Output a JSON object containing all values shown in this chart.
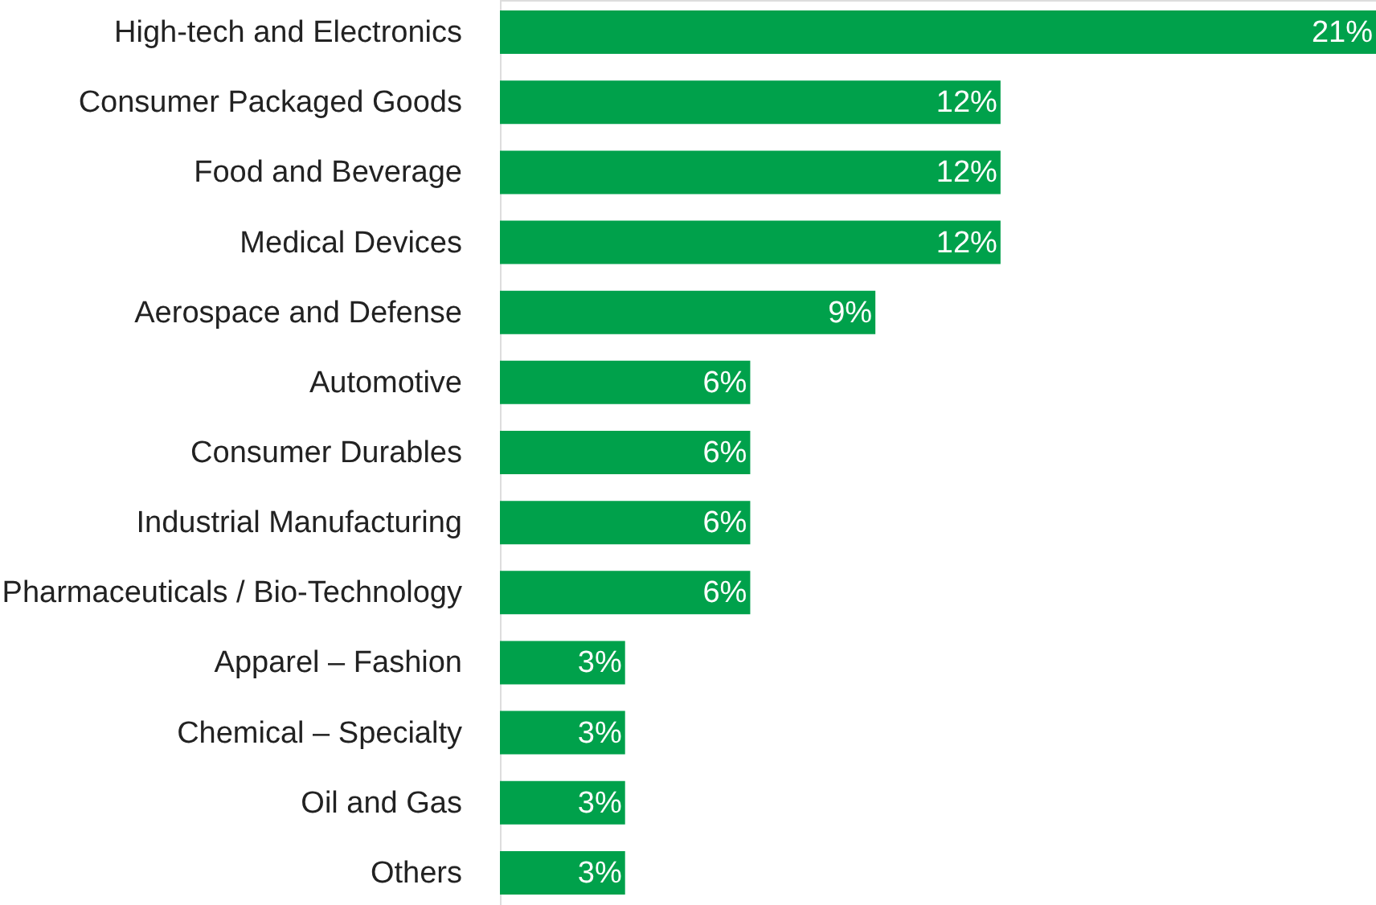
{
  "chart_data": {
    "type": "bar",
    "orientation": "horizontal",
    "categories": [
      "High-tech and Electronics",
      "Consumer Packaged Goods",
      "Food and Beverage",
      "Medical Devices",
      "Aerospace and Defense",
      "Automotive",
      "Consumer Durables",
      "Industrial Manufacturing",
      "Pharmaceuticals / Bio-Technology",
      "Apparel – Fashion",
      "Chemical – Specialty",
      "Oil and Gas",
      "Others"
    ],
    "values": [
      21,
      12,
      12,
      12,
      9,
      6,
      6,
      6,
      6,
      3,
      3,
      3,
      3
    ],
    "value_labels": [
      "21%",
      "12%",
      "12%",
      "12%",
      "9%",
      "6%",
      "6%",
      "6%",
      "6%",
      "3%",
      "3%",
      "3%",
      "3%"
    ],
    "color": "#00a14b"
  }
}
